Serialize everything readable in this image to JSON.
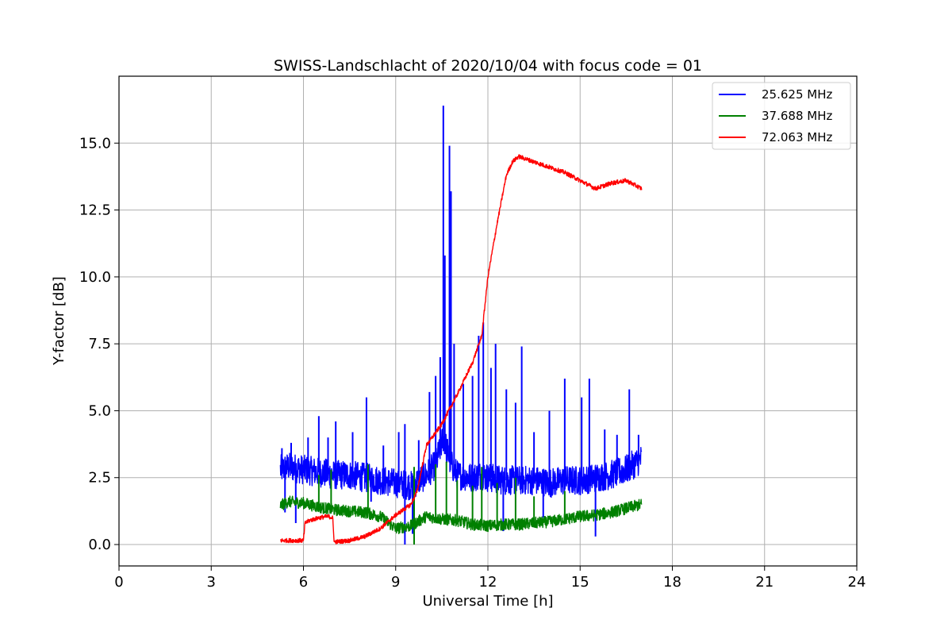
{
  "chart_data": {
    "type": "line",
    "title": "SWISS-Landschlacht of 2020/10/04 with focus code = 01",
    "xlabel": "Universal Time [h]",
    "ylabel": "Y-factor [dB]",
    "xlim": [
      0,
      24
    ],
    "ylim": [
      -0.8,
      17.5
    ],
    "xticks": [
      0,
      3,
      6,
      9,
      12,
      15,
      18,
      21,
      24
    ],
    "xtick_labels": [
      "0",
      "3",
      "6",
      "9",
      "12",
      "15",
      "18",
      "21",
      "24"
    ],
    "yticks": [
      0,
      2.5,
      5,
      7.5,
      10,
      12.5,
      15
    ],
    "ytick_labels": [
      "0.0",
      "2.5",
      "5.0",
      "7.5",
      "10.0",
      "12.5",
      "15.0"
    ],
    "grid": true,
    "legend_position": "top-right",
    "series": [
      {
        "name": "25.625 MHz",
        "color": "#0000ff",
        "x": [
          5.25,
          5.5,
          6.0,
          6.5,
          7.0,
          7.5,
          8.0,
          8.5,
          9.0,
          9.5,
          10.0,
          10.3,
          10.55,
          10.8,
          11.0,
          11.5,
          11.8,
          12.0,
          12.5,
          13.0,
          13.5,
          14.0,
          14.5,
          15.0,
          15.5,
          16.0,
          16.5,
          17.0
        ],
        "values": [
          2.8,
          2.9,
          2.8,
          2.7,
          2.6,
          2.6,
          2.5,
          2.4,
          2.3,
          2.2,
          2.6,
          3.0,
          4.0,
          3.0,
          2.6,
          2.5,
          2.6,
          2.5,
          2.4,
          2.4,
          2.4,
          2.3,
          2.4,
          2.4,
          2.5,
          2.6,
          2.8,
          3.2
        ],
        "spikes": [
          {
            "x": 5.3,
            "y": 3.6
          },
          {
            "x": 5.6,
            "y": 3.8
          },
          {
            "x": 6.15,
            "y": 4.0
          },
          {
            "x": 6.5,
            "y": 4.8
          },
          {
            "x": 6.8,
            "y": 4.0
          },
          {
            "x": 7.05,
            "y": 4.6
          },
          {
            "x": 7.6,
            "y": 4.2
          },
          {
            "x": 8.05,
            "y": 5.5
          },
          {
            "x": 8.6,
            "y": 3.7
          },
          {
            "x": 9.1,
            "y": 4.2
          },
          {
            "x": 9.3,
            "y": 4.5
          },
          {
            "x": 9.75,
            "y": 3.9
          },
          {
            "x": 10.1,
            "y": 5.7
          },
          {
            "x": 10.3,
            "y": 6.3
          },
          {
            "x": 10.45,
            "y": 7.0
          },
          {
            "x": 10.55,
            "y": 16.4
          },
          {
            "x": 10.6,
            "y": 10.8
          },
          {
            "x": 10.75,
            "y": 14.9
          },
          {
            "x": 10.8,
            "y": 13.2
          },
          {
            "x": 10.9,
            "y": 7.5
          },
          {
            "x": 11.2,
            "y": 6.0
          },
          {
            "x": 11.5,
            "y": 6.3
          },
          {
            "x": 11.7,
            "y": 7.8
          },
          {
            "x": 11.85,
            "y": 8.3
          },
          {
            "x": 12.1,
            "y": 6.6
          },
          {
            "x": 12.25,
            "y": 7.5
          },
          {
            "x": 12.6,
            "y": 5.8
          },
          {
            "x": 12.9,
            "y": 5.3
          },
          {
            "x": 13.1,
            "y": 7.4
          },
          {
            "x": 13.5,
            "y": 4.2
          },
          {
            "x": 14.0,
            "y": 5.0
          },
          {
            "x": 14.5,
            "y": 6.2
          },
          {
            "x": 15.05,
            "y": 5.5
          },
          {
            "x": 15.3,
            "y": 6.2
          },
          {
            "x": 15.8,
            "y": 4.3
          },
          {
            "x": 16.2,
            "y": 4.1
          },
          {
            "x": 16.6,
            "y": 5.8
          },
          {
            "x": 16.9,
            "y": 4.1
          }
        ],
        "dips": [
          {
            "x": 5.4,
            "y": 1.2
          },
          {
            "x": 5.75,
            "y": 0.8
          },
          {
            "x": 8.2,
            "y": 1.6
          },
          {
            "x": 9.3,
            "y": 0.0
          },
          {
            "x": 9.55,
            "y": 0.4
          },
          {
            "x": 12.5,
            "y": 0.5
          },
          {
            "x": 13.8,
            "y": 1.0
          },
          {
            "x": 15.5,
            "y": 0.3
          }
        ]
      },
      {
        "name": "37.688 MHz",
        "color": "#008000",
        "x": [
          5.25,
          5.5,
          6.0,
          6.5,
          7.0,
          7.5,
          8.0,
          8.5,
          9.0,
          9.5,
          10.0,
          10.5,
          11.0,
          11.5,
          12.0,
          12.5,
          13.0,
          13.5,
          14.0,
          14.5,
          15.0,
          15.5,
          16.0,
          16.5,
          17.0
        ],
        "values": [
          1.45,
          1.6,
          1.55,
          1.4,
          1.3,
          1.25,
          1.2,
          1.05,
          0.6,
          0.7,
          1.05,
          0.95,
          0.9,
          0.75,
          0.7,
          0.75,
          0.75,
          0.8,
          0.85,
          0.95,
          1.05,
          1.1,
          1.2,
          1.35,
          1.5
        ],
        "spikes": [
          {
            "x": 6.5,
            "y": 2.6
          },
          {
            "x": 6.9,
            "y": 2.8
          },
          {
            "x": 8.1,
            "y": 3.0
          },
          {
            "x": 9.6,
            "y": 2.9
          },
          {
            "x": 10.3,
            "y": 3.0
          },
          {
            "x": 10.65,
            "y": 3.1
          },
          {
            "x": 11.0,
            "y": 2.4
          },
          {
            "x": 11.5,
            "y": 2.2
          },
          {
            "x": 11.8,
            "y": 2.9
          },
          {
            "x": 12.3,
            "y": 2.3
          },
          {
            "x": 12.9,
            "y": 2.5
          },
          {
            "x": 13.5,
            "y": 1.8
          },
          {
            "x": 14.5,
            "y": 2.0
          }
        ],
        "dips": [
          {
            "x": 9.6,
            "y": 0.0
          }
        ]
      },
      {
        "name": "72.063 MHz",
        "color": "#ff0000",
        "x": [
          5.25,
          6.0,
          6.05,
          6.2,
          6.5,
          6.8,
          6.95,
          7.0,
          7.05,
          7.5,
          8.0,
          8.5,
          9.0,
          9.5,
          9.7,
          10.0,
          10.5,
          11.0,
          11.5,
          11.8,
          12.0,
          12.3,
          12.6,
          12.8,
          13.0,
          13.5,
          14.0,
          14.5,
          15.0,
          15.5,
          16.0,
          16.5,
          17.0
        ],
        "values": [
          0.15,
          0.15,
          0.8,
          0.9,
          1.0,
          1.05,
          1.0,
          0.1,
          0.1,
          0.15,
          0.3,
          0.6,
          1.1,
          1.5,
          2.0,
          3.7,
          4.5,
          5.6,
          6.8,
          7.8,
          10.0,
          12.0,
          13.8,
          14.3,
          14.5,
          14.3,
          14.1,
          13.9,
          13.6,
          13.3,
          13.5,
          13.6,
          13.3
        ]
      }
    ]
  }
}
